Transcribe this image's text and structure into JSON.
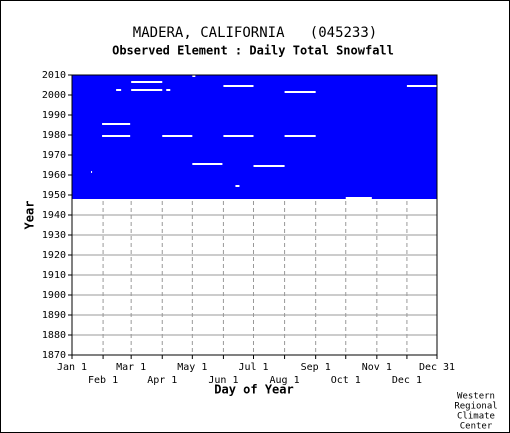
{
  "chart_data": {
    "type": "availability",
    "title": "MADERA, CALIFORNIA   (045233)",
    "subtitle": "Observed Element : Daily Total Snowfall",
    "xlabel": "Day of Year",
    "ylabel": "Year",
    "credit": [
      "Western",
      "Regional",
      "Climate",
      "Center"
    ],
    "color": "#0000ff",
    "xlim": [
      1,
      365
    ],
    "ylim": [
      1870,
      2010
    ],
    "xticks": [
      {
        "value": 1,
        "label": "Jan 1"
      },
      {
        "value": 32,
        "label": "Feb 1"
      },
      {
        "value": 60,
        "label": "Mar 1"
      },
      {
        "value": 91,
        "label": "Apr 1"
      },
      {
        "value": 121,
        "label": "May 1"
      },
      {
        "value": 152,
        "label": "Jun 1"
      },
      {
        "value": 182,
        "label": "Jul 1"
      },
      {
        "value": 213,
        "label": "Aug 1"
      },
      {
        "value": 244,
        "label": "Sep 1"
      },
      {
        "value": 274,
        "label": "Oct 1"
      },
      {
        "value": 305,
        "label": "Nov 1"
      },
      {
        "value": 335,
        "label": "Dec 1"
      },
      {
        "value": 365,
        "label": "Dec 31"
      }
    ],
    "yticks": [
      1870,
      1880,
      1890,
      1900,
      1910,
      1920,
      1930,
      1940,
      1950,
      1960,
      1970,
      1980,
      1990,
      2000,
      2010
    ],
    "coverage": {
      "start_year": 1948,
      "end_year": 2010
    },
    "gaps": [
      {
        "year": 2009,
        "start": 121,
        "end": 124
      },
      {
        "year": 2006,
        "start": 60,
        "end": 91
      },
      {
        "year": 2004,
        "start": 152,
        "end": 182
      },
      {
        "year": 2004,
        "start": 335,
        "end": 365
      },
      {
        "year": 2002,
        "start": 45,
        "end": 50
      },
      {
        "year": 2002,
        "start": 60,
        "end": 91
      },
      {
        "year": 2002,
        "start": 95,
        "end": 99
      },
      {
        "year": 2001,
        "start": 213,
        "end": 244
      },
      {
        "year": 1985,
        "start": 31,
        "end": 59
      },
      {
        "year": 1979,
        "start": 31,
        "end": 59
      },
      {
        "year": 1979,
        "start": 91,
        "end": 121
      },
      {
        "year": 1979,
        "start": 152,
        "end": 182
      },
      {
        "year": 1979,
        "start": 213,
        "end": 244
      },
      {
        "year": 1965,
        "start": 121,
        "end": 151
      },
      {
        "year": 1964,
        "start": 182,
        "end": 213
      },
      {
        "year": 1961,
        "start": 20,
        "end": 21
      },
      {
        "year": 1954,
        "start": 164,
        "end": 168
      },
      {
        "year": 1948,
        "start": 274,
        "end": 300
      }
    ]
  }
}
